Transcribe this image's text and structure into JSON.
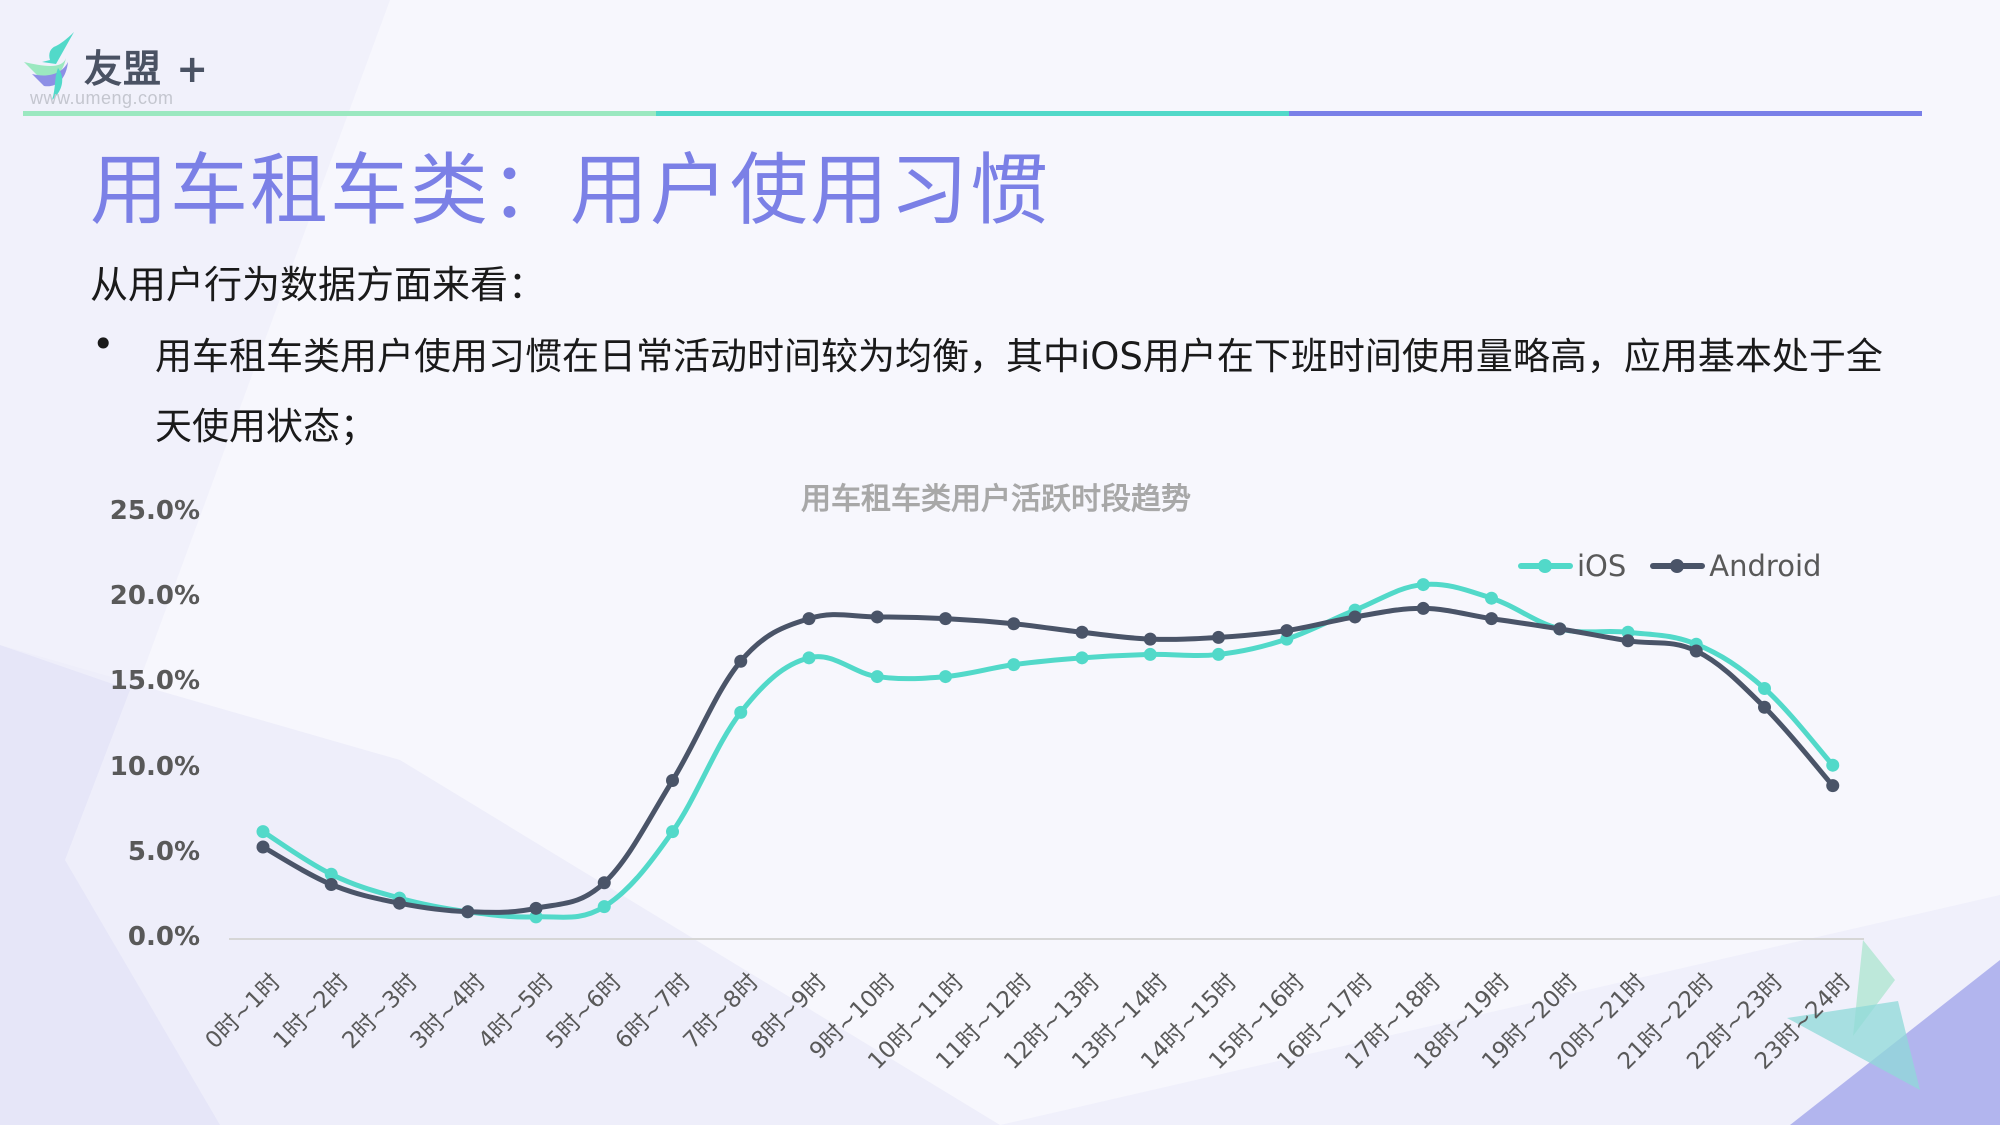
{
  "brand": {
    "name": "友盟",
    "plus": "+",
    "url": "www.umeng.com"
  },
  "colors": {
    "title": "#7b80e6",
    "ios": "#52d9c9",
    "android": "#4a5468",
    "line_segments": [
      "#9be8c0",
      "#52d9c9",
      "#7a80e8"
    ]
  },
  "header": {
    "title": "用车租车类：用户使用习惯"
  },
  "body": {
    "intro": "从用户行为数据方面来看：",
    "bullets": [
      "用车租车类用户使用习惯在日常活动时间较为均衡，其中iOS用户在下班时间使用量略高，应用基本处于全天使用状态；"
    ]
  },
  "chart_data": {
    "type": "line",
    "title": "用车租车类用户活跃时段趋势",
    "xlabel": "",
    "ylabel": "",
    "ylim": [
      0,
      25
    ],
    "yticks": [
      "0.0%",
      "5.0%",
      "10.0%",
      "15.0%",
      "20.0%",
      "25.0%"
    ],
    "grid": false,
    "legend_position": "top-right",
    "categories": [
      "0时~1时",
      "1时~2时",
      "2时~3时",
      "3时~4时",
      "4时~5时",
      "5时~6时",
      "6时~7时",
      "7时~8时",
      "8时~9时",
      "9时~10时",
      "10时~11时",
      "11时~12时",
      "12时~13时",
      "13时~14时",
      "14时~15时",
      "15时~16时",
      "16时~17时",
      "17时~18时",
      "18时~19时",
      "19时~20时",
      "20时~21时",
      "21时~22时",
      "22时~23时",
      "23时~24时"
    ],
    "series": [
      {
        "name": "iOS",
        "color": "#52d9c9",
        "values": [
          6.3,
          3.8,
          2.4,
          1.6,
          1.3,
          1.9,
          6.3,
          13.3,
          16.5,
          15.4,
          15.4,
          16.1,
          16.5,
          16.7,
          16.7,
          17.6,
          19.3,
          20.8,
          20.0,
          18.2,
          18.0,
          17.3,
          14.7,
          10.2
        ]
      },
      {
        "name": "Android",
        "color": "#4a5468",
        "values": [
          5.4,
          3.2,
          2.1,
          1.6,
          1.8,
          3.3,
          9.3,
          16.3,
          18.8,
          18.9,
          18.8,
          18.5,
          18.0,
          17.6,
          17.7,
          18.1,
          18.9,
          19.4,
          18.8,
          18.2,
          17.5,
          16.9,
          13.6,
          9.0
        ]
      }
    ]
  }
}
